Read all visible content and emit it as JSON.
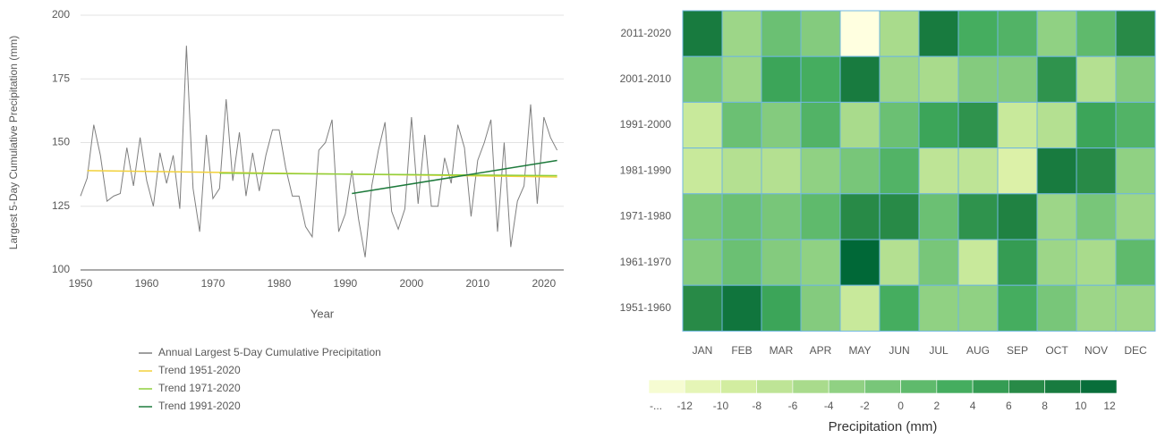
{
  "chart_data": [
    {
      "type": "line",
      "xlabel": "Year",
      "ylabel": "Largest 5-Day Cumulative Precipitation (mm)",
      "xlim": [
        1950,
        2023
      ],
      "xticks": [
        1950,
        1960,
        1970,
        1980,
        1990,
        2000,
        2010,
        2020
      ],
      "ylim": [
        100,
        200
      ],
      "yticks": [
        100,
        125,
        150,
        175,
        200
      ],
      "grid": true,
      "series": [
        {
          "name": "Annual Largest 5-Day Cumulative Precipitation",
          "color": "#7f7f7f",
          "x": [
            1950,
            1951,
            1952,
            1953,
            1954,
            1955,
            1956,
            1957,
            1958,
            1959,
            1960,
            1961,
            1962,
            1963,
            1964,
            1965,
            1966,
            1967,
            1968,
            1969,
            1970,
            1971,
            1972,
            1973,
            1974,
            1975,
            1976,
            1977,
            1978,
            1979,
            1980,
            1981,
            1982,
            1983,
            1984,
            1985,
            1986,
            1987,
            1988,
            1989,
            1990,
            1991,
            1992,
            1993,
            1994,
            1995,
            1996,
            1997,
            1998,
            1999,
            2000,
            2001,
            2002,
            2003,
            2004,
            2005,
            2006,
            2007,
            2008,
            2009,
            2010,
            2011,
            2012,
            2013,
            2014,
            2015,
            2016,
            2017,
            2018,
            2019,
            2020,
            2021,
            2022
          ],
          "values": [
            129,
            136,
            157,
            145,
            127,
            129,
            130,
            148,
            133,
            152,
            135,
            125,
            146,
            134,
            145,
            124,
            188,
            132,
            115,
            153,
            128,
            132,
            167,
            135,
            154,
            129,
            146,
            131,
            145,
            155,
            155,
            140,
            129,
            129,
            117,
            113,
            147,
            150,
            159,
            115,
            122,
            139,
            120,
            105,
            133,
            147,
            158,
            123,
            116,
            124,
            160,
            126,
            153,
            125,
            125,
            144,
            134,
            157,
            148,
            121,
            143,
            150,
            159,
            115,
            150,
            109,
            127,
            133,
            165,
            126,
            160,
            152,
            147
          ]
        },
        {
          "name": "Trend 1951-2020",
          "color": "#f2d13a",
          "x": [
            1951,
            2022
          ],
          "values": [
            139,
            136.5
          ]
        },
        {
          "name": "Trend 1971-2020",
          "color": "#8fcf3c",
          "x": [
            1971,
            2022
          ],
          "values": [
            138,
            137
          ]
        },
        {
          "name": "Trend 1991-2020",
          "color": "#1e7a3c",
          "x": [
            1991,
            2022
          ],
          "values": [
            130,
            143
          ]
        }
      ]
    },
    {
      "type": "heatmap",
      "rows": [
        "2011-2020",
        "2001-2010",
        "1991-2000",
        "1981-1990",
        "1971-1980",
        "1961-1970",
        "1951-1960"
      ],
      "columns": [
        "JAN",
        "FEB",
        "MAR",
        "APR",
        "MAY",
        "JUN",
        "JUL",
        "AUG",
        "SEP",
        "OCT",
        "NOV",
        "DEC"
      ],
      "values": [
        [
          9,
          -4,
          0,
          -2,
          -14,
          -5,
          9,
          3,
          2,
          -3,
          1,
          7
        ],
        [
          -1,
          -4,
          4,
          3,
          9,
          -4,
          -5,
          -2,
          -2,
          6,
          -6,
          -2
        ],
        [
          -8,
          0,
          -2,
          2,
          -5,
          0,
          4,
          6,
          -8,
          -6,
          4,
          2
        ],
        [
          -8,
          -6,
          -6,
          -3,
          -1,
          2,
          -7,
          -7,
          -10,
          9,
          7,
          -3
        ],
        [
          -1,
          0,
          -1,
          1,
          7,
          7,
          0,
          6,
          8,
          -4,
          -1,
          -4
        ],
        [
          -2,
          0,
          -2,
          -3,
          12,
          -6,
          -1,
          -8,
          5,
          -4,
          -5,
          1
        ],
        [
          7,
          10,
          4,
          -2,
          -8,
          3,
          -3,
          -3,
          3,
          -1,
          -4,
          -4
        ]
      ],
      "colors": [
        "#ffffe0",
        "#d9f0a3",
        "#addd8e",
        "#78c679",
        "#41ab5d",
        "#238443",
        "#006837"
      ],
      "colorlim": [
        -14,
        12
      ],
      "colorbar_ticks": [
        {
          "value": -14,
          "label": "-..."
        },
        -12,
        -10,
        -8,
        -6,
        -4,
        -2,
        0,
        2,
        4,
        6,
        8,
        10,
        12
      ],
      "colorbar_label": "Precipitation (mm)"
    }
  ]
}
